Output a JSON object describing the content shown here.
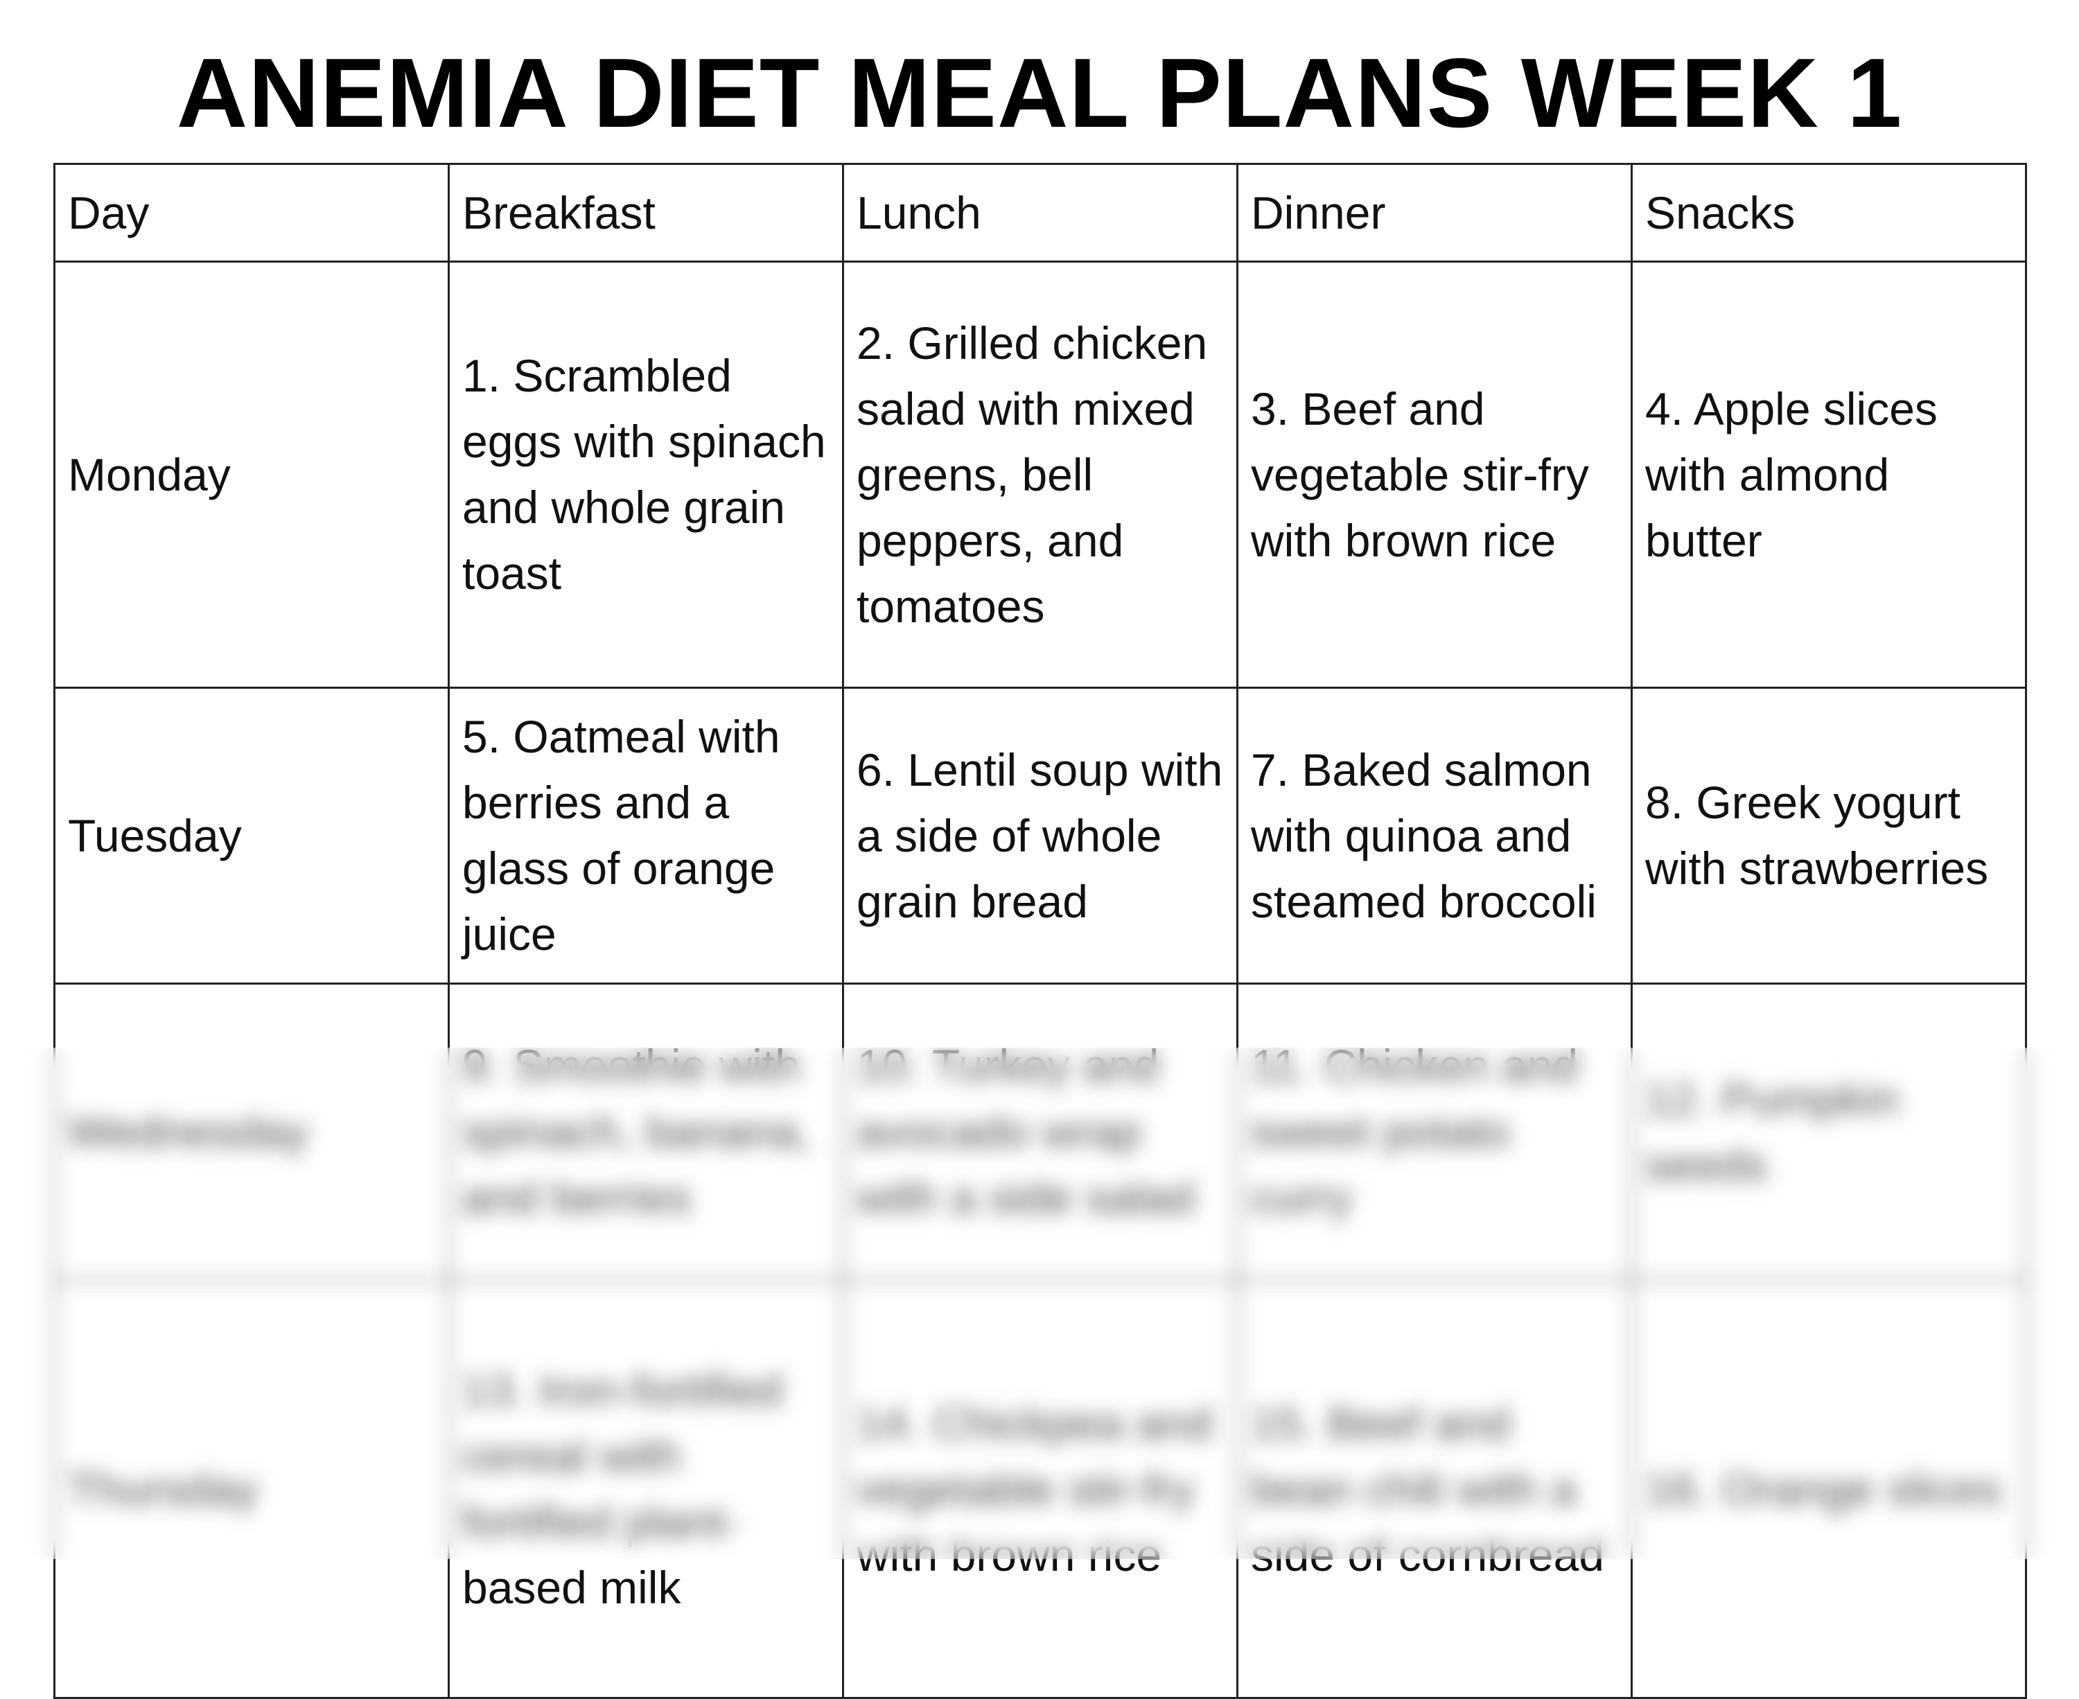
{
  "title": "ANEMIA DIET MEAL PLANS WEEK 1",
  "headers": [
    "Day",
    "Breakfast",
    "Lunch",
    "Dinner",
    "Snacks"
  ],
  "rows": [
    {
      "day": "Monday",
      "breakfast": "1. Scrambled eggs with spinach and whole grain toast",
      "lunch": "2. Grilled chicken salad with mixed greens, bell peppers, and tomatoes",
      "dinner": "3. Beef and vegetable stir-fry with brown rice",
      "snacks": "4. Apple slices with almond butter"
    },
    {
      "day": "Tuesday",
      "breakfast": "5. Oatmeal with berries and a glass of orange juice",
      "lunch": "6. Lentil soup with a side of whole grain bread",
      "dinner": "7. Baked salmon with quinoa and steamed broccoli",
      "snacks": "8. Greek yogurt with strawberries"
    },
    {
      "day": "Wednesday",
      "breakfast": "9. Smoothie with spinach, banana, and berries",
      "lunch": "10. Turkey and avocado wrap with a side salad",
      "dinner": "11. Chicken and sweet potato curry",
      "snacks": "12. Pumpkin seeds"
    },
    {
      "day": "Thursday",
      "breakfast": "13. Iron-fortified cereal with fortified plant-based milk",
      "lunch": "14. Chickpea and vegetable stir-fry with brown rice",
      "dinner": "15. Beef and bean chili with a side of cornbread",
      "snacks": "16. Orange slices"
    }
  ]
}
